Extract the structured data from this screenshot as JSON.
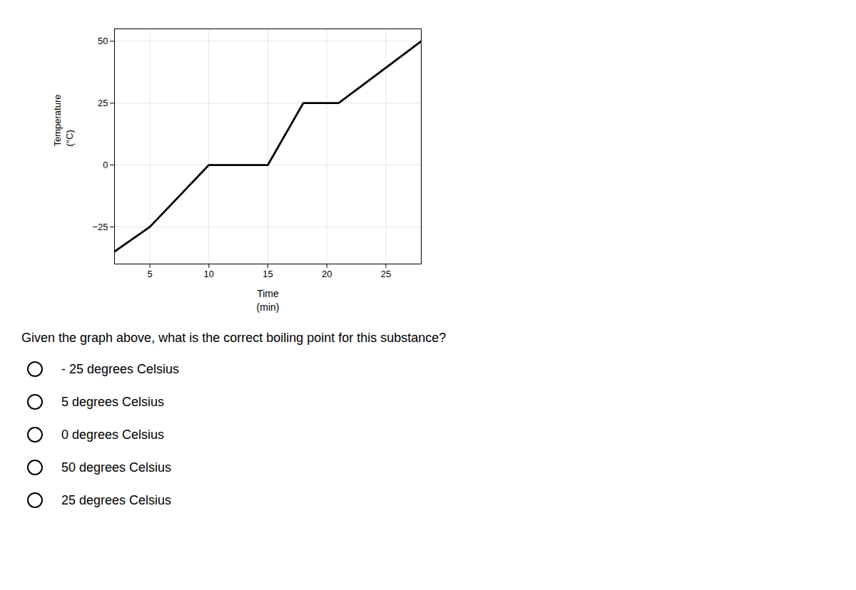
{
  "chart_data": {
    "type": "line",
    "x": [
      2,
      5,
      10,
      15,
      18,
      21,
      28
    ],
    "values": [
      -35,
      -25,
      0,
      0,
      25,
      25,
      50
    ],
    "color": "black",
    "xlabel": "Time\n(min)",
    "ylabel": "Temperature\n(°C)",
    "xlim": [
      2,
      28
    ],
    "xticks": [
      5,
      10,
      15,
      20,
      25
    ],
    "ylim": [
      -40,
      55
    ],
    "yticks": [
      -25,
      0,
      25,
      50
    ],
    "grid": true,
    "annotations": [
      "Given the graph above, what is the correct boiling point for this substance?",
      "- 25 degrees Celsius",
      "5 degrees Celsius",
      "0 degrees Celsius",
      "50 degrees Celsius",
      "25 degrees Celsius"
    ]
  }
}
